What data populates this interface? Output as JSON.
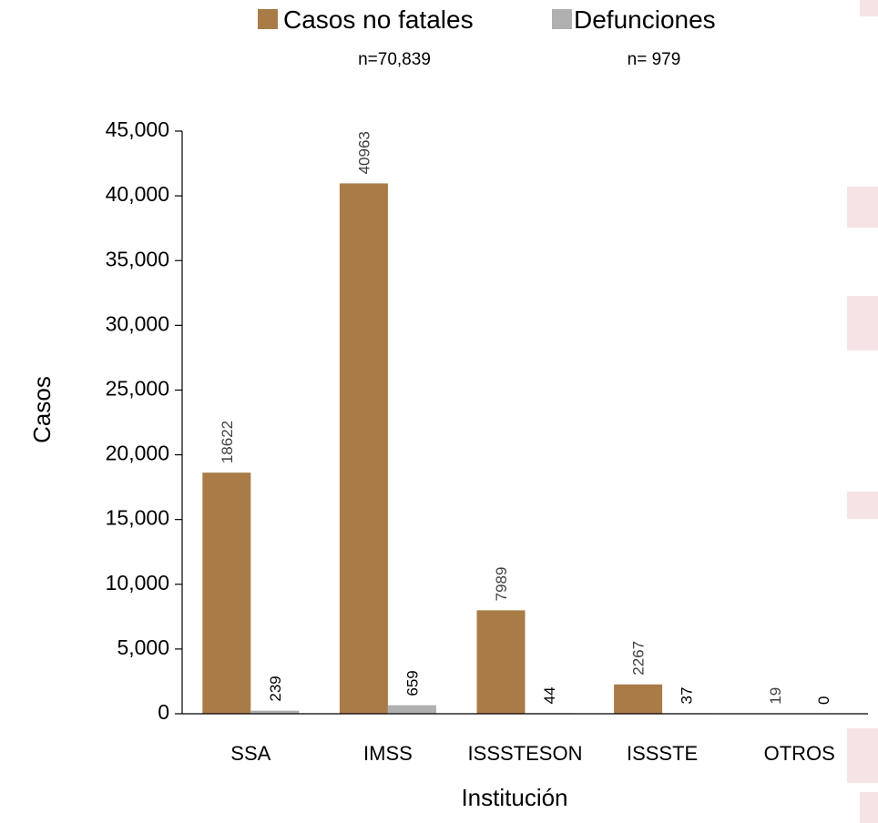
{
  "chart_data": {
    "type": "bar",
    "categories": [
      "SSA",
      "IMSS",
      "ISSSTESON",
      "ISSSTE",
      "OTROS"
    ],
    "series": [
      {
        "name": "Casos no fatales",
        "n_label": "n=70,839",
        "color": "#a97c47",
        "values": [
          18622,
          40963,
          7989,
          2267,
          19
        ],
        "data_labels": [
          "18622",
          "40963",
          "7989",
          "2267",
          "19"
        ]
      },
      {
        "name": "Defunciones",
        "n_label": "n= 979",
        "color": "#b1b0b0",
        "values": [
          239,
          659,
          44,
          37,
          0
        ],
        "data_labels": [
          "239",
          "659",
          "44",
          "37",
          "0"
        ]
      }
    ],
    "ylabel": "Casos",
    "xlabel": "Institución",
    "ylim": [
      0,
      45000
    ],
    "yticks": [
      0,
      5000,
      10000,
      15000,
      20000,
      25000,
      30000,
      35000,
      40000,
      45000
    ],
    "ytick_labels": [
      "0",
      "5,000",
      "10,000",
      "15,000",
      "20,000",
      "25,000",
      "30,000",
      "35,000",
      "40,000",
      "45,000"
    ],
    "grid": false,
    "legend_position": "top"
  }
}
